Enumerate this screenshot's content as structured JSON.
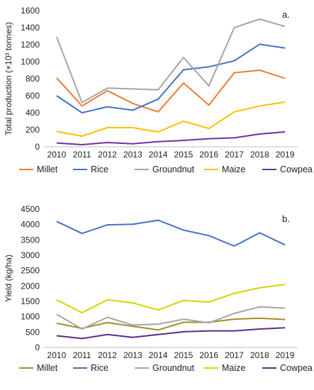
{
  "chart_data": [
    {
      "type": "line",
      "panel_label": "a.",
      "ylabel": "Total production (×10³ tonnes)",
      "xlabel": "",
      "ylim": [
        0,
        1600
      ],
      "yticks": [
        0,
        200,
        400,
        600,
        800,
        1000,
        1200,
        1400,
        1600
      ],
      "x": [
        "2010",
        "2011",
        "2012",
        "2013",
        "2014",
        "2015",
        "2016",
        "2017",
        "2018",
        "2019"
      ],
      "grid": false,
      "legend_position": "bottom",
      "series": [
        {
          "name": "Millet",
          "color": "#ED7D31",
          "values": [
            810,
            480,
            660,
            510,
            410,
            750,
            490,
            870,
            900,
            805
          ]
        },
        {
          "name": "Rice",
          "color": "#4472C4",
          "values": [
            600,
            400,
            470,
            430,
            560,
            905,
            940,
            1010,
            1205,
            1160
          ]
        },
        {
          "name": "Groundnut",
          "color": "#A5A5A5",
          "values": [
            1290,
            520,
            690,
            680,
            670,
            1050,
            715,
            1400,
            1500,
            1415
          ]
        },
        {
          "name": "Maize",
          "color": "#FFC000",
          "values": [
            180,
            125,
            225,
            225,
            175,
            300,
            215,
            410,
            480,
            525
          ]
        },
        {
          "name": "Cowpea",
          "color": "#7030A0",
          "values": [
            45,
            25,
            50,
            35,
            60,
            75,
            95,
            105,
            150,
            175
          ]
        }
      ]
    },
    {
      "type": "line",
      "panel_label": "b.",
      "ylabel": "Yield (kg/ha)",
      "xlabel": "",
      "ylim": [
        0,
        4500
      ],
      "yticks": [
        0,
        500,
        1000,
        1500,
        2000,
        2500,
        3000,
        3500,
        4000,
        4500
      ],
      "x": [
        "2010",
        "2011",
        "2012",
        "2013",
        "2014",
        "2015",
        "2016",
        "2017",
        "2018",
        "2019"
      ],
      "grid": false,
      "legend_position": "bottom",
      "series": [
        {
          "name": "Millet",
          "color": "#A88A2C",
          "values": [
            790,
            620,
            810,
            690,
            570,
            820,
            820,
            920,
            950,
            910
          ]
        },
        {
          "name": "Rice",
          "color": "#4472C4",
          "values": [
            4100,
            3710,
            3990,
            4010,
            4140,
            3820,
            3640,
            3300,
            3730,
            3340
          ]
        },
        {
          "name": "Groundnut",
          "color": "#A5A5A5",
          "values": [
            1080,
            600,
            980,
            730,
            760,
            920,
            800,
            1110,
            1320,
            1280
          ]
        },
        {
          "name": "Maize",
          "color": "#D4D400",
          "values": [
            1550,
            1130,
            1550,
            1450,
            1220,
            1530,
            1480,
            1760,
            1940,
            2050
          ]
        },
        {
          "name": "Cowpea",
          "color": "#5B2C8C",
          "values": [
            380,
            290,
            420,
            330,
            420,
            510,
            540,
            540,
            600,
            640
          ]
        }
      ]
    }
  ]
}
